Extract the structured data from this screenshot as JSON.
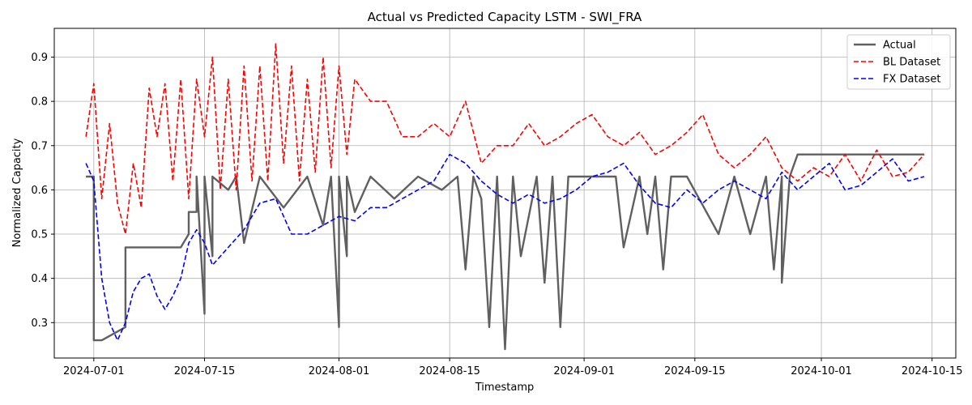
{
  "chart_data": {
    "type": "line",
    "title": "Actual vs Predicted Capacity LSTM - SWI_FRA",
    "xlabel": "Timestamp",
    "ylabel": "Normalized Capacity",
    "xlim": [
      "2024-06-26",
      "2024-10-18"
    ],
    "ylim": [
      0.22,
      0.965
    ],
    "grid": true,
    "legend_position": "top-right",
    "x_ticks": [
      "2024-07-01",
      "2024-07-15",
      "2024-08-01",
      "2024-08-15",
      "2024-09-01",
      "2024-09-15",
      "2024-10-01",
      "2024-10-15"
    ],
    "y_ticks": [
      "0.3",
      "0.4",
      "0.5",
      "0.6",
      "0.7",
      "0.8",
      "0.9"
    ],
    "series": [
      {
        "name": "Actual",
        "color": "#606060",
        "style": "solid",
        "x": [
          "2024-06-30",
          "2024-07-01",
          "2024-07-01",
          "2024-07-02",
          "2024-07-05",
          "2024-07-05",
          "2024-07-12",
          "2024-07-13",
          "2024-07-13",
          "2024-07-14",
          "2024-07-14",
          "2024-07-15",
          "2024-07-15",
          "2024-07-16",
          "2024-07-16",
          "2024-07-18",
          "2024-07-19",
          "2024-07-20",
          "2024-07-22",
          "2024-07-25",
          "2024-07-28",
          "2024-07-30",
          "2024-07-31",
          "2024-08-01",
          "2024-08-01",
          "2024-08-02",
          "2024-08-02",
          "2024-08-03",
          "2024-08-05",
          "2024-08-08",
          "2024-08-11",
          "2024-08-14",
          "2024-08-16",
          "2024-08-17",
          "2024-08-18",
          "2024-08-19",
          "2024-08-20",
          "2024-08-21",
          "2024-08-22",
          "2024-08-23",
          "2024-08-24",
          "2024-08-26",
          "2024-08-27",
          "2024-08-28",
          "2024-08-29",
          "2024-08-30",
          "2024-09-01",
          "2024-09-05",
          "2024-09-06",
          "2024-09-08",
          "2024-09-09",
          "2024-09-10",
          "2024-09-11",
          "2024-09-12",
          "2024-09-14",
          "2024-09-18",
          "2024-09-20",
          "2024-09-22",
          "2024-09-24",
          "2024-09-25",
          "2024-09-26",
          "2024-09-26",
          "2024-09-27",
          "2024-09-28",
          "2024-09-28",
          "2024-10-05",
          "2024-10-07",
          "2024-10-10",
          "2024-10-14"
        ],
        "y": [
          0.63,
          0.63,
          0.26,
          0.26,
          0.29,
          0.47,
          0.47,
          0.5,
          0.55,
          0.55,
          0.63,
          0.32,
          0.63,
          0.45,
          0.63,
          0.6,
          0.63,
          0.48,
          0.63,
          0.56,
          0.63,
          0.52,
          0.63,
          0.29,
          0.63,
          0.45,
          0.63,
          0.55,
          0.63,
          0.58,
          0.63,
          0.6,
          0.63,
          0.42,
          0.63,
          0.58,
          0.29,
          0.63,
          0.24,
          0.63,
          0.45,
          0.63,
          0.39,
          0.63,
          0.29,
          0.63,
          0.63,
          0.63,
          0.47,
          0.63,
          0.5,
          0.63,
          0.42,
          0.63,
          0.63,
          0.5,
          0.63,
          0.5,
          0.63,
          0.42,
          0.63,
          0.39,
          0.63,
          0.68,
          0.68,
          0.68,
          0.68,
          0.68,
          0.68
        ]
      },
      {
        "name": "BL Dataset",
        "color": "#ff0000",
        "style": "dashed",
        "x": [
          "2024-06-30",
          "2024-07-01",
          "2024-07-02",
          "2024-07-03",
          "2024-07-04",
          "2024-07-05",
          "2024-07-06",
          "2024-07-07",
          "2024-07-08",
          "2024-07-09",
          "2024-07-10",
          "2024-07-11",
          "2024-07-12",
          "2024-07-13",
          "2024-07-14",
          "2024-07-15",
          "2024-07-16",
          "2024-07-17",
          "2024-07-18",
          "2024-07-19",
          "2024-07-20",
          "2024-07-21",
          "2024-07-22",
          "2024-07-23",
          "2024-07-24",
          "2024-07-25",
          "2024-07-26",
          "2024-07-27",
          "2024-07-28",
          "2024-07-29",
          "2024-07-30",
          "2024-07-31",
          "2024-08-01",
          "2024-08-02",
          "2024-08-03",
          "2024-08-05",
          "2024-08-07",
          "2024-08-09",
          "2024-08-11",
          "2024-08-13",
          "2024-08-15",
          "2024-08-17",
          "2024-08-19",
          "2024-08-21",
          "2024-08-23",
          "2024-08-25",
          "2024-08-27",
          "2024-08-29",
          "2024-08-31",
          "2024-09-02",
          "2024-09-04",
          "2024-09-06",
          "2024-09-08",
          "2024-09-10",
          "2024-09-12",
          "2024-09-14",
          "2024-09-16",
          "2024-09-18",
          "2024-09-20",
          "2024-09-22",
          "2024-09-24",
          "2024-09-26",
          "2024-09-28",
          "2024-09-30",
          "2024-10-02",
          "2024-10-04",
          "2024-10-06",
          "2024-10-08",
          "2024-10-10",
          "2024-10-12",
          "2024-10-14"
        ],
        "y": [
          0.72,
          0.84,
          0.58,
          0.75,
          0.57,
          0.5,
          0.66,
          0.56,
          0.83,
          0.72,
          0.84,
          0.62,
          0.85,
          0.58,
          0.85,
          0.72,
          0.9,
          0.6,
          0.85,
          0.6,
          0.88,
          0.62,
          0.88,
          0.62,
          0.93,
          0.66,
          0.88,
          0.62,
          0.85,
          0.64,
          0.9,
          0.65,
          0.88,
          0.68,
          0.85,
          0.8,
          0.8,
          0.72,
          0.72,
          0.75,
          0.72,
          0.8,
          0.66,
          0.7,
          0.7,
          0.75,
          0.7,
          0.72,
          0.75,
          0.77,
          0.72,
          0.7,
          0.73,
          0.68,
          0.7,
          0.73,
          0.77,
          0.68,
          0.65,
          0.68,
          0.72,
          0.65,
          0.62,
          0.65,
          0.63,
          0.68,
          0.62,
          0.69,
          0.63,
          0.64,
          0.68
        ]
      },
      {
        "name": "FX Dataset",
        "color": "#0000ff",
        "style": "dashed",
        "x": [
          "2024-06-30",
          "2024-07-01",
          "2024-07-02",
          "2024-07-03",
          "2024-07-04",
          "2024-07-05",
          "2024-07-06",
          "2024-07-07",
          "2024-07-08",
          "2024-07-09",
          "2024-07-10",
          "2024-07-11",
          "2024-07-12",
          "2024-07-13",
          "2024-07-14",
          "2024-07-15",
          "2024-07-16",
          "2024-07-18",
          "2024-07-20",
          "2024-07-22",
          "2024-07-24",
          "2024-07-26",
          "2024-07-28",
          "2024-07-30",
          "2024-08-01",
          "2024-08-03",
          "2024-08-05",
          "2024-08-07",
          "2024-08-09",
          "2024-08-11",
          "2024-08-13",
          "2024-08-15",
          "2024-08-17",
          "2024-08-19",
          "2024-08-21",
          "2024-08-23",
          "2024-08-25",
          "2024-08-27",
          "2024-08-29",
          "2024-08-31",
          "2024-09-02",
          "2024-09-04",
          "2024-09-06",
          "2024-09-08",
          "2024-09-10",
          "2024-09-12",
          "2024-09-14",
          "2024-09-16",
          "2024-09-18",
          "2024-09-20",
          "2024-09-22",
          "2024-09-24",
          "2024-09-26",
          "2024-09-28",
          "2024-09-30",
          "2024-10-02",
          "2024-10-04",
          "2024-10-06",
          "2024-10-08",
          "2024-10-10",
          "2024-10-12",
          "2024-10-14"
        ],
        "y": [
          0.66,
          0.62,
          0.4,
          0.3,
          0.26,
          0.3,
          0.37,
          0.4,
          0.41,
          0.36,
          0.33,
          0.36,
          0.4,
          0.48,
          0.51,
          0.48,
          0.43,
          0.47,
          0.51,
          0.57,
          0.58,
          0.5,
          0.5,
          0.52,
          0.54,
          0.53,
          0.56,
          0.56,
          0.58,
          0.6,
          0.62,
          0.68,
          0.66,
          0.62,
          0.59,
          0.57,
          0.59,
          0.57,
          0.58,
          0.6,
          0.63,
          0.64,
          0.66,
          0.61,
          0.57,
          0.56,
          0.6,
          0.57,
          0.6,
          0.62,
          0.6,
          0.58,
          0.64,
          0.6,
          0.63,
          0.66,
          0.6,
          0.61,
          0.64,
          0.67,
          0.62,
          0.63
        ]
      }
    ]
  }
}
